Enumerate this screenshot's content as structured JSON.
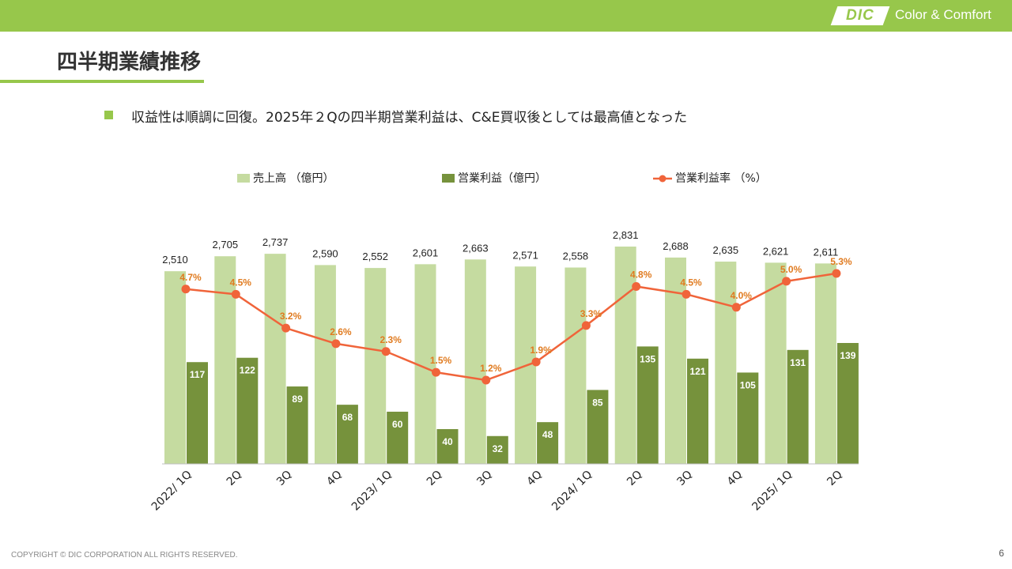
{
  "header": {
    "logo_text": "DIC",
    "tagline": "Color & Comfort"
  },
  "page_title": "四半期業績推移",
  "bullet": "収益性は順調に回復。2025年２Qの四半期営業利益は、C&E買収後としては最高値となった",
  "chart_data": {
    "type": "bar",
    "categories": [
      "2022/ 1Q",
      "2Q",
      "3Q",
      "4Q",
      "2023/ 1Q",
      "2Q",
      "3Q",
      "4Q",
      "2024/ 1Q",
      "2Q",
      "3Q",
      "4Q",
      "2025/ 1Q",
      "2Q"
    ],
    "series": [
      {
        "name": "売上高 （億円）",
        "type": "bar",
        "color": "#c5dba0",
        "values": [
          2510,
          2705,
          2737,
          2590,
          2552,
          2601,
          2663,
          2571,
          2558,
          2831,
          2688,
          2635,
          2621,
          2611
        ],
        "labels": [
          "2,510",
          "2,705",
          "2,737",
          "2,590",
          "2,552",
          "2,601",
          "2,663",
          "2,571",
          "2,558",
          "2,831",
          "2,688",
          "2,635",
          "2,621",
          "2,611"
        ]
      },
      {
        "name": "営業利益（億円）",
        "type": "bar",
        "color": "#76923c",
        "values": [
          117,
          122,
          89,
          68,
          60,
          40,
          32,
          48,
          85,
          135,
          121,
          105,
          131,
          139
        ],
        "labels": [
          "117",
          "122",
          "89",
          "68",
          "60",
          "40",
          "32",
          "48",
          "85",
          "135",
          "121",
          "105",
          "131",
          "139"
        ]
      },
      {
        "name": "営業利益率 （%）",
        "type": "line",
        "color": "#f0643a",
        "label_color": "#e07b20",
        "values": [
          4.7,
          4.5,
          3.2,
          2.6,
          2.3,
          1.5,
          1.2,
          1.9,
          3.3,
          4.8,
          4.5,
          4.0,
          5.0,
          5.3
        ],
        "labels": [
          "4.7%",
          "4.5%",
          "3.2%",
          "2.6%",
          "2.3%",
          "1.5%",
          "1.2%",
          "1.9%",
          "3.3%",
          "4.8%",
          "4.5%",
          "4.0%",
          "5.0%",
          "5.3%"
        ]
      }
    ],
    "legend_position": "top",
    "grid": false
  },
  "footer": {
    "copyright": "COPYRIGHT © DIC CORPORATION ALL RIGHTS RESERVED.",
    "page_number": "6"
  }
}
